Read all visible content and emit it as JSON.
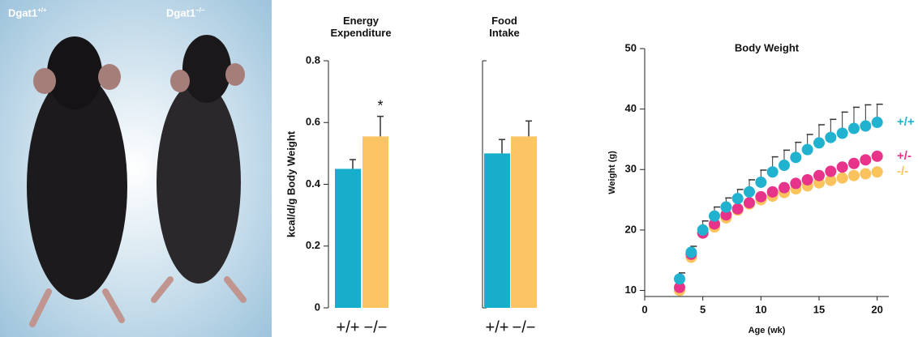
{
  "photo": {
    "labels": [
      {
        "text": "Dgat1",
        "sup": "+/+"
      },
      {
        "text": "Dgat1",
        "sup": "−/−"
      }
    ]
  },
  "chart_data": [
    {
      "type": "bar",
      "title": "Energy Expenditure",
      "ylabel": "kcal/d/g Body Weight",
      "categories": [
        "+/+",
        "−/−"
      ],
      "values": [
        0.45,
        0.555
      ],
      "errors": [
        0.03,
        0.065
      ],
      "colors": [
        "#17aecb",
        "#fcc463"
      ],
      "ylim": [
        0,
        0.8
      ],
      "yticks": [
        0,
        0.2,
        0.4,
        0.6,
        0.8
      ],
      "annotation": {
        "text": "*",
        "category": "−/−"
      }
    },
    {
      "type": "bar",
      "title": "Food Intake",
      "categories": [
        "+/+",
        "−/−"
      ],
      "values": [
        0.5,
        0.555
      ],
      "errors": [
        0.045,
        0.05
      ],
      "colors": [
        "#17aecb",
        "#fcc463"
      ],
      "ylim": [
        0,
        0.8
      ]
    },
    {
      "type": "line",
      "title": "Body Weight",
      "xlabel": "Age (wk)",
      "ylabel": "Weight (g)",
      "x": [
        3,
        4,
        5,
        6,
        7,
        8,
        9,
        10,
        11,
        12,
        13,
        14,
        15,
        16,
        17,
        18,
        19,
        20
      ],
      "xlim": [
        0,
        21
      ],
      "xticks": [
        0,
        5,
        10,
        15,
        20
      ],
      "ylim": [
        9,
        50
      ],
      "yticks": [
        10,
        20,
        30,
        40,
        50
      ],
      "series": [
        {
          "name": "+/+",
          "color": "#21b2d0",
          "values": [
            11.9,
            16.3,
            20,
            22.3,
            23.8,
            25.2,
            26.3,
            27.9,
            29.6,
            30.7,
            32,
            33.3,
            34.4,
            35.3,
            36,
            36.8,
            37.2,
            37.8
          ],
          "errors": [
            1,
            1,
            1.5,
            1.5,
            1.5,
            1.5,
            2,
            2,
            2.5,
            2.5,
            2.5,
            2.5,
            3,
            3,
            3.5,
            3.5,
            3.5,
            3
          ]
        },
        {
          "name": "+/-",
          "color": "#e8338a",
          "values": [
            10.5,
            16,
            19.5,
            21,
            22.5,
            23.5,
            24.5,
            25.5,
            26.3,
            27,
            27.7,
            28.3,
            29,
            29.7,
            30.4,
            31,
            31.6,
            32.2
          ]
        },
        {
          "name": "-/-",
          "color": "#fbc35e",
          "values": [
            10,
            15.5,
            19.5,
            20.5,
            22,
            23.3,
            24.3,
            25,
            25.6,
            26.2,
            26.8,
            27.3,
            27.8,
            28.2,
            28.6,
            29,
            29.3,
            29.6
          ]
        }
      ]
    }
  ]
}
